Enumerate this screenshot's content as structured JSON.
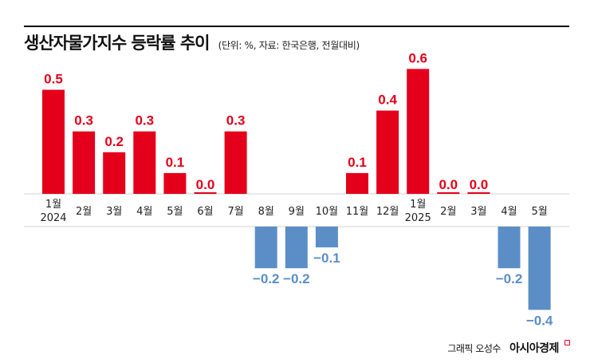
{
  "chart_data": {
    "type": "bar",
    "title": "생산자물가지수 등락률 추이",
    "subtitle": "(단위: %, 자료: 한국은행, 전월대비)",
    "categories": [
      {
        "month": "1월",
        "year": "2024"
      },
      {
        "month": "2월",
        "year": ""
      },
      {
        "month": "3월",
        "year": ""
      },
      {
        "month": "4월",
        "year": ""
      },
      {
        "month": "5월",
        "year": ""
      },
      {
        "month": "6월",
        "year": ""
      },
      {
        "month": "7월",
        "year": ""
      },
      {
        "month": "8월",
        "year": ""
      },
      {
        "month": "9월",
        "year": ""
      },
      {
        "month": "10월",
        "year": ""
      },
      {
        "month": "11월",
        "year": ""
      },
      {
        "month": "12월",
        "year": ""
      },
      {
        "month": "1월",
        "year": "2025"
      },
      {
        "month": "2월",
        "year": ""
      },
      {
        "month": "3월",
        "year": ""
      },
      {
        "month": "4월",
        "year": ""
      },
      {
        "month": "5월",
        "year": ""
      }
    ],
    "values": [
      0.5,
      0.3,
      0.2,
      0.3,
      0.1,
      0.0,
      0.3,
      -0.2,
      -0.2,
      -0.1,
      0.1,
      0.4,
      0.6,
      0.0,
      0.0,
      -0.2,
      -0.4
    ],
    "value_labels": [
      "0.5",
      "0.3",
      "0.2",
      "0.3",
      "0.1",
      "0.0",
      "0.3",
      "−0.2",
      "−0.2",
      "−0.1",
      "0.1",
      "0.4",
      "0.6",
      "0.0",
      "0.0",
      "−0.2",
      "−0.4"
    ],
    "unit": "%",
    "ylim": [
      -0.4,
      0.6
    ],
    "grid": false,
    "legend": "none",
    "colors": {
      "positive": "#e4001b",
      "negative": "#5b8ec7",
      "zero": "#e4001b",
      "axis_band": "#d9d9d9"
    }
  },
  "credit": {
    "author": "그래픽 오성수",
    "brand": "아시아경제"
  }
}
